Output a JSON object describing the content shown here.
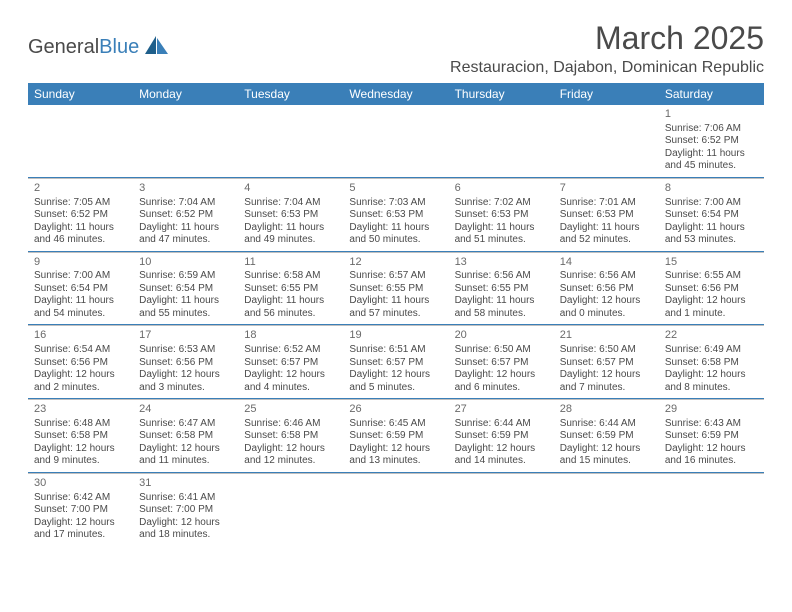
{
  "logo": {
    "word1": "General",
    "word2": "Blue"
  },
  "title": "March 2025",
  "location": "Restauracion, Dajabon, Dominican Republic",
  "dayHeaders": [
    "Sunday",
    "Monday",
    "Tuesday",
    "Wednesday",
    "Thursday",
    "Friday",
    "Saturday"
  ],
  "colors": {
    "headerBg": "#3a7fb8",
    "headerText": "#ffffff",
    "bodyText": "#4a4a4a",
    "sepTop": "#3a7fb8",
    "sepBottom": "#bfbfbf",
    "background": "#ffffff"
  },
  "weeks": [
    [
      null,
      null,
      null,
      null,
      null,
      null,
      {
        "n": "1",
        "sr": "7:06 AM",
        "ss": "6:52 PM",
        "dl": "11 hours and 45 minutes."
      }
    ],
    [
      {
        "n": "2",
        "sr": "7:05 AM",
        "ss": "6:52 PM",
        "dl": "11 hours and 46 minutes."
      },
      {
        "n": "3",
        "sr": "7:04 AM",
        "ss": "6:52 PM",
        "dl": "11 hours and 47 minutes."
      },
      {
        "n": "4",
        "sr": "7:04 AM",
        "ss": "6:53 PM",
        "dl": "11 hours and 49 minutes."
      },
      {
        "n": "5",
        "sr": "7:03 AM",
        "ss": "6:53 PM",
        "dl": "11 hours and 50 minutes."
      },
      {
        "n": "6",
        "sr": "7:02 AM",
        "ss": "6:53 PM",
        "dl": "11 hours and 51 minutes."
      },
      {
        "n": "7",
        "sr": "7:01 AM",
        "ss": "6:53 PM",
        "dl": "11 hours and 52 minutes."
      },
      {
        "n": "8",
        "sr": "7:00 AM",
        "ss": "6:54 PM",
        "dl": "11 hours and 53 minutes."
      }
    ],
    [
      {
        "n": "9",
        "sr": "7:00 AM",
        "ss": "6:54 PM",
        "dl": "11 hours and 54 minutes."
      },
      {
        "n": "10",
        "sr": "6:59 AM",
        "ss": "6:54 PM",
        "dl": "11 hours and 55 minutes."
      },
      {
        "n": "11",
        "sr": "6:58 AM",
        "ss": "6:55 PM",
        "dl": "11 hours and 56 minutes."
      },
      {
        "n": "12",
        "sr": "6:57 AM",
        "ss": "6:55 PM",
        "dl": "11 hours and 57 minutes."
      },
      {
        "n": "13",
        "sr": "6:56 AM",
        "ss": "6:55 PM",
        "dl": "11 hours and 58 minutes."
      },
      {
        "n": "14",
        "sr": "6:56 AM",
        "ss": "6:56 PM",
        "dl": "12 hours and 0 minutes."
      },
      {
        "n": "15",
        "sr": "6:55 AM",
        "ss": "6:56 PM",
        "dl": "12 hours and 1 minute."
      }
    ],
    [
      {
        "n": "16",
        "sr": "6:54 AM",
        "ss": "6:56 PM",
        "dl": "12 hours and 2 minutes."
      },
      {
        "n": "17",
        "sr": "6:53 AM",
        "ss": "6:56 PM",
        "dl": "12 hours and 3 minutes."
      },
      {
        "n": "18",
        "sr": "6:52 AM",
        "ss": "6:57 PM",
        "dl": "12 hours and 4 minutes."
      },
      {
        "n": "19",
        "sr": "6:51 AM",
        "ss": "6:57 PM",
        "dl": "12 hours and 5 minutes."
      },
      {
        "n": "20",
        "sr": "6:50 AM",
        "ss": "6:57 PM",
        "dl": "12 hours and 6 minutes."
      },
      {
        "n": "21",
        "sr": "6:50 AM",
        "ss": "6:57 PM",
        "dl": "12 hours and 7 minutes."
      },
      {
        "n": "22",
        "sr": "6:49 AM",
        "ss": "6:58 PM",
        "dl": "12 hours and 8 minutes."
      }
    ],
    [
      {
        "n": "23",
        "sr": "6:48 AM",
        "ss": "6:58 PM",
        "dl": "12 hours and 9 minutes."
      },
      {
        "n": "24",
        "sr": "6:47 AM",
        "ss": "6:58 PM",
        "dl": "12 hours and 11 minutes."
      },
      {
        "n": "25",
        "sr": "6:46 AM",
        "ss": "6:58 PM",
        "dl": "12 hours and 12 minutes."
      },
      {
        "n": "26",
        "sr": "6:45 AM",
        "ss": "6:59 PM",
        "dl": "12 hours and 13 minutes."
      },
      {
        "n": "27",
        "sr": "6:44 AM",
        "ss": "6:59 PM",
        "dl": "12 hours and 14 minutes."
      },
      {
        "n": "28",
        "sr": "6:44 AM",
        "ss": "6:59 PM",
        "dl": "12 hours and 15 minutes."
      },
      {
        "n": "29",
        "sr": "6:43 AM",
        "ss": "6:59 PM",
        "dl": "12 hours and 16 minutes."
      }
    ],
    [
      {
        "n": "30",
        "sr": "6:42 AM",
        "ss": "7:00 PM",
        "dl": "12 hours and 17 minutes."
      },
      {
        "n": "31",
        "sr": "6:41 AM",
        "ss": "7:00 PM",
        "dl": "12 hours and 18 minutes."
      },
      null,
      null,
      null,
      null,
      null
    ]
  ]
}
